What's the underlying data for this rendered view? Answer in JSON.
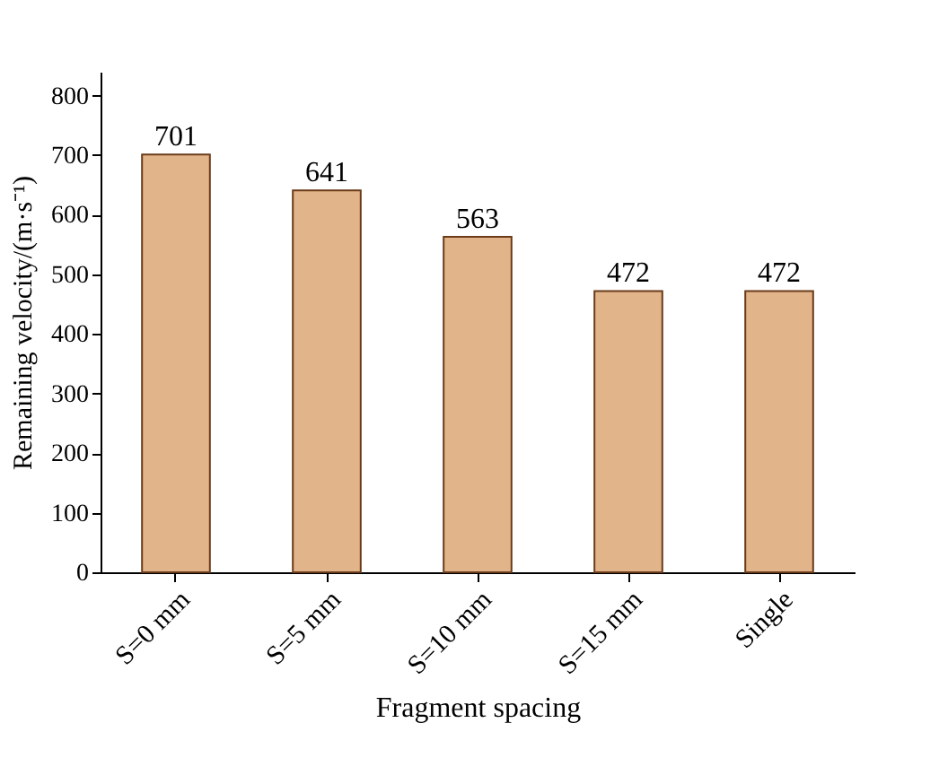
{
  "chart_data": {
    "type": "bar",
    "xlabel": "Fragment spacing",
    "ylabel": "Remaining velocity/(m·s⁻¹)",
    "categories": [
      "S=0 mm",
      "S=5 mm",
      "S=10 mm",
      "S=15 mm",
      "Single"
    ],
    "values": [
      701,
      641,
      563,
      472,
      472
    ],
    "color": "#e2b48a",
    "ylim": [
      0,
      840
    ],
    "yticks": [
      0,
      100,
      200,
      300,
      400,
      500,
      600,
      700,
      800
    ],
    "grid": false,
    "data_labels": true
  }
}
